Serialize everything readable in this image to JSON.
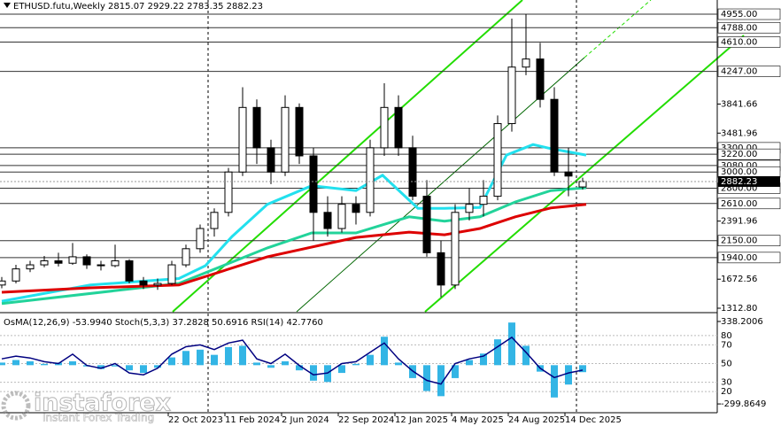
{
  "chart_data": [
    {
      "type": "candlestick",
      "title": "ETHUSD.futu,Weekly  2815.07 2929.22 2783.35 2882.23",
      "x": [
        0,
        4,
        8,
        12,
        16,
        20,
        24,
        28,
        32,
        36,
        40,
        44,
        48,
        52,
        56,
        60,
        64,
        68,
        72,
        76,
        80,
        84,
        88,
        92,
        96,
        100,
        104,
        108,
        112,
        116,
        120,
        124,
        128,
        132,
        136,
        140,
        144,
        148,
        152,
        156,
        160,
        164
      ],
      "open": [
        1600,
        1650,
        1800,
        1850,
        1900,
        1870,
        1950,
        1850,
        1840,
        1900,
        1650,
        1600,
        1620,
        1850,
        2050,
        2300,
        2500,
        3000,
        3800,
        3300,
        3000,
        3800,
        3200,
        2500,
        2300,
        2600,
        2500,
        3300,
        3800,
        3300,
        2700,
        2000,
        1600,
        2500,
        2600,
        2700,
        3600,
        4300,
        4400,
        3900,
        3000,
        2815.07
      ],
      "high": [
        1700,
        1850,
        1900,
        1960,
        2000,
        2120,
        1980,
        1900,
        2100,
        1920,
        1700,
        1680,
        1900,
        2100,
        2350,
        2550,
        3050,
        4050,
        3900,
        3400,
        3950,
        3850,
        3300,
        2700,
        2700,
        2700,
        3400,
        4100,
        3950,
        3450,
        2900,
        2150,
        2600,
        2800,
        2900,
        3700,
        4900,
        4955,
        4600,
        4050,
        3300,
        2929.22
      ],
      "low": [
        1560,
        1620,
        1760,
        1820,
        1830,
        1850,
        1800,
        1780,
        1820,
        1620,
        1550,
        1540,
        1600,
        1820,
        2000,
        2200,
        2450,
        2950,
        3100,
        2850,
        2950,
        3100,
        2150,
        2200,
        2250,
        2350,
        2450,
        3200,
        3200,
        2650,
        1950,
        1450,
        1550,
        2400,
        2450,
        2650,
        3500,
        4200,
        3800,
        2950,
        2700,
        2783.35
      ],
      "close": [
        1650,
        1800,
        1850,
        1900,
        1870,
        1950,
        1850,
        1840,
        1900,
        1650,
        1600,
        1620,
        1850,
        2050,
        2300,
        2500,
        3000,
        3800,
        3300,
        3000,
        3800,
        3200,
        2500,
        2300,
        2600,
        2500,
        3300,
        3800,
        3300,
        2700,
        2000,
        1600,
        2500,
        2600,
        2700,
        3600,
        4300,
        4400,
        3900,
        3000,
        2950,
        2882.23
      ],
      "xlim": [
        -0.5,
        202
      ],
      "xticks": [
        {
          "value": 47,
          "label": "22 Oct 2023"
        },
        {
          "value": 63,
          "label": "11 Feb 2024"
        },
        {
          "value": 79,
          "label": "2 Jun 2024"
        },
        {
          "value": 95,
          "label": "22 Sep 2024"
        },
        {
          "value": 111,
          "label": "12 Jan 2025"
        },
        {
          "value": 127,
          "label": "4 May 2025"
        },
        {
          "value": 143,
          "label": "24 Aug 2025"
        },
        {
          "value": 159,
          "label": "14 Dec 2025"
        }
      ],
      "ylim": [
        1269,
        5131
      ],
      "yticks": [
        3841.66,
        3481.96,
        2391.96,
        1672.56,
        {
          "value": 1312.8,
          "label": "1312.80"
        }
      ],
      "levels": [
        {
          "value": 4955,
          "label": "4955.00"
        },
        {
          "value": 4788,
          "label": "4788.00"
        },
        {
          "value": 4610,
          "label": "4610.00"
        },
        {
          "value": 4247,
          "label": "4247.00"
        },
        {
          "value": 3300,
          "label": "3300.00"
        },
        {
          "value": 3220,
          "label": "3220.00"
        },
        {
          "value": 3080,
          "label": "3080.00"
        },
        {
          "value": 3000,
          "label": "3000.00"
        },
        {
          "value": 2800,
          "label": "2800.00"
        },
        {
          "value": 2610,
          "label": "2610.00"
        },
        {
          "value": 2150,
          "label": "2150.00"
        },
        {
          "value": 1940,
          "label": "1940.00"
        }
      ],
      "last_price": 2882.23,
      "moving_averages": [
        {
          "color": "#22e0ee",
          "x": [
            0,
            25,
            50,
            57.5,
            65,
            75,
            87.5,
            100,
            107.5,
            117.5,
            125,
            135,
            142.5,
            150,
            155,
            165
          ],
          "values": [
            1400,
            1600,
            1680,
            1840,
            2200,
            2600,
            2830,
            2770,
            2960,
            2550,
            2550,
            2560,
            3210,
            3340,
            3290,
            3210
          ]
        },
        {
          "color": "#22d39a",
          "x": [
            0,
            50,
            75,
            87.5,
            100,
            115,
            125,
            135,
            145,
            155,
            165
          ],
          "values": [
            1370,
            1620,
            2060,
            2245,
            2245,
            2445,
            2390,
            2445,
            2630,
            2770,
            2805
          ]
        },
        {
          "color": "#dd0000",
          "x": [
            0,
            25,
            50,
            75,
            100,
            115,
            125,
            135,
            145,
            155,
            165
          ],
          "values": [
            1510,
            1565,
            1600,
            1950,
            2190,
            2255,
            2222,
            2300,
            2445,
            2555,
            2600
          ]
        }
      ]
    },
    {
      "type": "osma",
      "title": "OsMA(12,26,9) -53.9940  Stoch(5,3,3) 37.2828 50.6916  RSI(14) 42.7760",
      "x": [
        0,
        4,
        8,
        12,
        16,
        20,
        24,
        28,
        32,
        36,
        40,
        44,
        48,
        52,
        56,
        60,
        64,
        68,
        72,
        76,
        80,
        84,
        88,
        92,
        96,
        100,
        104,
        108,
        112,
        116,
        120,
        124,
        128,
        132,
        136,
        140,
        144,
        148,
        152,
        156,
        160,
        164
      ],
      "osma": {
        "color": "#33b5e5",
        "values": [
          20,
          40,
          30,
          10,
          20,
          30,
          -10,
          -30,
          -10,
          -40,
          -60,
          -20,
          60,
          110,
          120,
          80,
          140,
          150,
          20,
          -20,
          30,
          -40,
          -120,
          -130,
          -60,
          10,
          80,
          220,
          20,
          -100,
          -200,
          -240,
          -100,
          40,
          90,
          200,
          330,
          150,
          -50,
          -250,
          -150,
          -54
        ]
      },
      "rsi": {
        "color": "#000080",
        "values": [
          55,
          58,
          56,
          52,
          50,
          60,
          48,
          45,
          50,
          40,
          38,
          45,
          60,
          68,
          70,
          65,
          72,
          75,
          55,
          50,
          60,
          48,
          38,
          40,
          50,
          52,
          62,
          72,
          55,
          42,
          32,
          28,
          50,
          55,
          58,
          68,
          78,
          62,
          45,
          35,
          40,
          43
        ]
      },
      "y2lim": [
        -361,
        386
      ],
      "y2ticks": [
        338.2006,
        -299.8649
      ],
      "ylim": [
        -1.6,
        101.6
      ],
      "yticks": [
        80,
        70,
        50,
        30,
        20
      ]
    }
  ],
  "watermark": {
    "brand": "instaforex",
    "tagline": "Instant Forex Trading"
  }
}
